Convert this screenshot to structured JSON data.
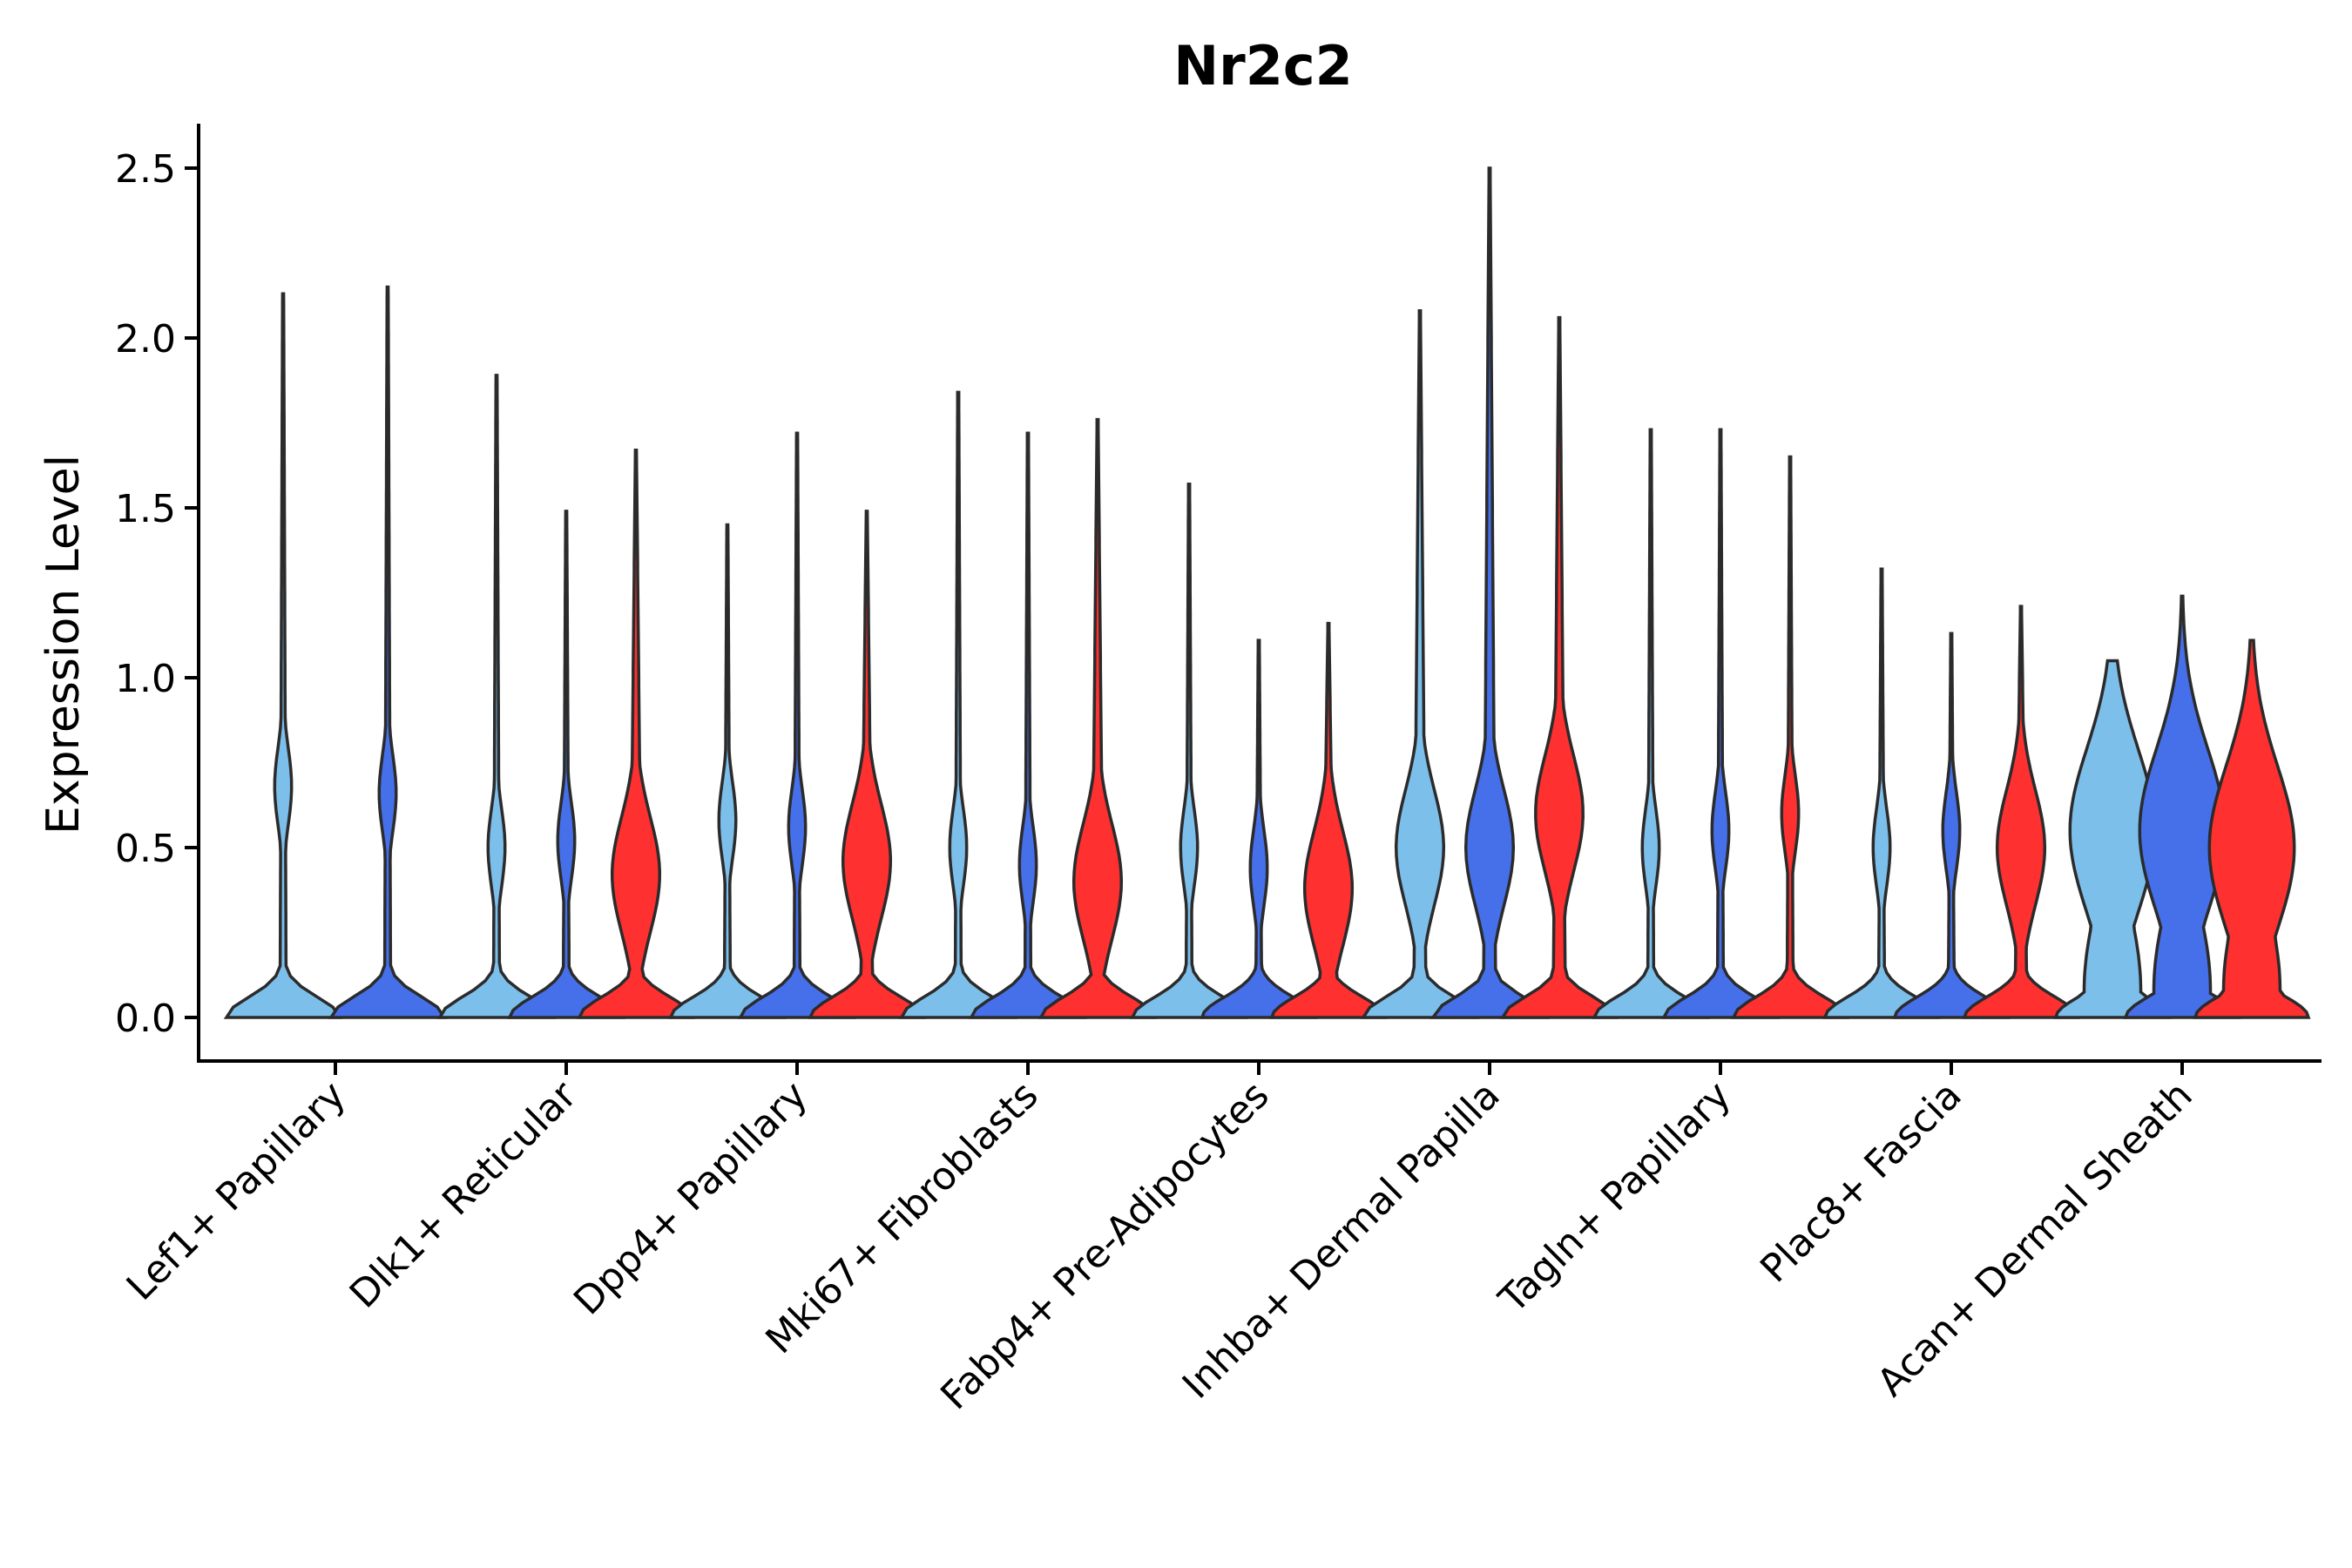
{
  "chart_data": {
    "type": "violin",
    "title": "Nr2c2",
    "xlabel": "",
    "ylabel": "Expression Level",
    "ylim": [
      -0.12,
      2.63
    ],
    "yticks": [
      0.0,
      0.5,
      1.0,
      1.5,
      2.0,
      2.5
    ],
    "ytick_labels": [
      "0.0",
      "0.5",
      "1.0",
      "1.5",
      "2.0",
      "2.5"
    ],
    "grid": false,
    "legend": "none",
    "colors": [
      "#7dbfeb",
      "#4570ea",
      "#ff3030"
    ],
    "outline_color": "#2b2b2b",
    "categories": [
      {
        "label": "Lef1+ Papillary",
        "violins": [
          {
            "color_index": 0,
            "max": 2.13,
            "mode": 0.68,
            "profile": "mid"
          },
          {
            "color_index": 1,
            "max": 2.15,
            "mode": 0.66,
            "profile": "mid"
          }
        ]
      },
      {
        "label": "Dlk1+ Reticular",
        "violins": [
          {
            "color_index": 0,
            "max": 1.89,
            "mode": 0.5,
            "profile": "mid"
          },
          {
            "color_index": 1,
            "max": 1.49,
            "mode": 0.52,
            "profile": "mid"
          },
          {
            "color_index": 2,
            "max": 1.67,
            "mode": 0.42,
            "profile": "wide"
          }
        ]
      },
      {
        "label": "Dpp4+ Papillary",
        "violins": [
          {
            "color_index": 0,
            "max": 1.45,
            "mode": 0.58,
            "profile": "mid"
          },
          {
            "color_index": 1,
            "max": 1.72,
            "mode": 0.56,
            "profile": "mid"
          },
          {
            "color_index": 2,
            "max": 1.49,
            "mode": 0.46,
            "profile": "wide"
          }
        ]
      },
      {
        "label": "Mki67+ Fibroblasts",
        "violins": [
          {
            "color_index": 0,
            "max": 1.84,
            "mode": 0.5,
            "profile": "mid"
          },
          {
            "color_index": 1,
            "max": 1.72,
            "mode": 0.45,
            "profile": "mid"
          },
          {
            "color_index": 2,
            "max": 1.76,
            "mode": 0.4,
            "profile": "wide"
          }
        ]
      },
      {
        "label": "Fabp4+ Pre-Adipocytes",
        "violins": [
          {
            "color_index": 0,
            "max": 1.57,
            "mode": 0.5,
            "profile": "mid"
          },
          {
            "color_index": 1,
            "max": 1.11,
            "mode": 0.44,
            "profile": "mid"
          },
          {
            "color_index": 2,
            "max": 1.16,
            "mode": 0.38,
            "profile": "wide"
          }
        ]
      },
      {
        "label": "Inhba+ Dermal Papilla",
        "violins": [
          {
            "color_index": 0,
            "max": 2.08,
            "mode": 0.5,
            "profile": "wide"
          },
          {
            "color_index": 1,
            "max": 2.5,
            "mode": 0.5,
            "profile": "wide"
          },
          {
            "color_index": 2,
            "max": 2.06,
            "mode": 0.6,
            "profile": "wide"
          }
        ]
      },
      {
        "label": "Tagln+ Papillary",
        "violins": [
          {
            "color_index": 0,
            "max": 1.73,
            "mode": 0.5,
            "profile": "mid"
          },
          {
            "color_index": 1,
            "max": 1.73,
            "mode": 0.55,
            "profile": "mid"
          },
          {
            "color_index": 2,
            "max": 1.65,
            "mode": 0.6,
            "profile": "mid"
          }
        ]
      },
      {
        "label": "Plac8+ Fascia",
        "violins": [
          {
            "color_index": 0,
            "max": 1.32,
            "mode": 0.5,
            "profile": "mid"
          },
          {
            "color_index": 1,
            "max": 1.13,
            "mode": 0.55,
            "profile": "mid"
          },
          {
            "color_index": 2,
            "max": 1.21,
            "mode": 0.5,
            "profile": "wide"
          }
        ]
      },
      {
        "label": "Acan+ Dermal Sheath",
        "violins": [
          {
            "color_index": 0,
            "max": 1.05,
            "mode": 0.55,
            "profile": "full"
          },
          {
            "color_index": 1,
            "max": 1.24,
            "mode": 0.55,
            "profile": "full"
          },
          {
            "color_index": 2,
            "max": 1.11,
            "mode": 0.5,
            "profile": "full"
          }
        ]
      }
    ]
  }
}
